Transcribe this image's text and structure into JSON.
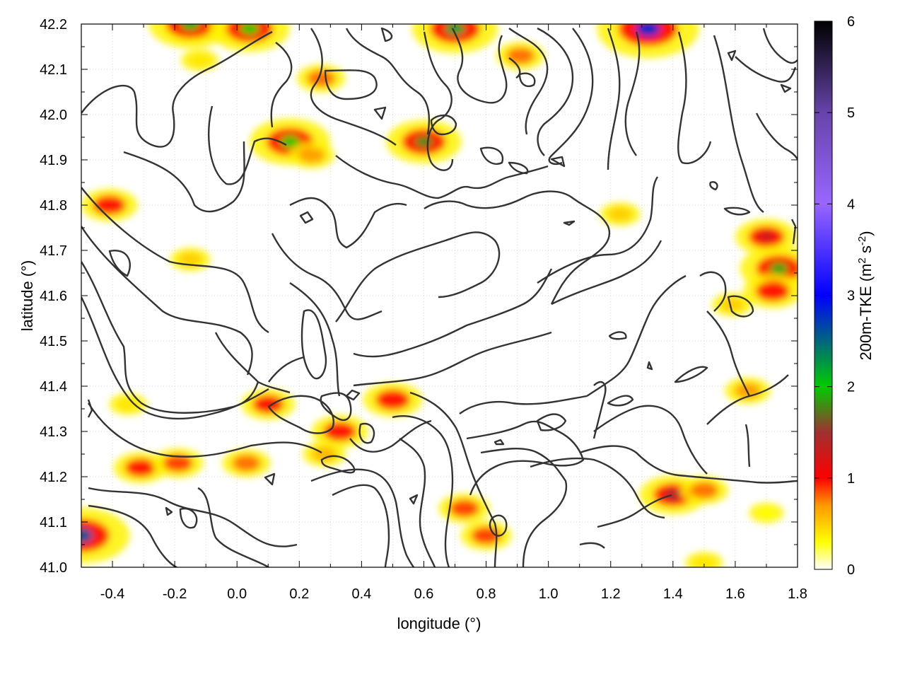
{
  "chart_data": {
    "type": "heatmap",
    "title": "",
    "xlabel": "longitude (°)",
    "ylabel": "latitude (°)",
    "xlim": [
      -0.5,
      1.8
    ],
    "ylim": [
      41.0,
      42.2
    ],
    "x_ticks": [
      -0.4,
      -0.2,
      0.0,
      0.2,
      0.4,
      0.6,
      0.8,
      1.0,
      1.2,
      1.4,
      1.6,
      1.8
    ],
    "x_tick_labels": [
      "-0.4",
      "-0.2",
      "0.0",
      "0.2",
      "0.4",
      "0.6",
      "0.8",
      "1.0",
      "1.2",
      "1.4",
      "1.6",
      "1.8"
    ],
    "y_ticks": [
      41.0,
      41.1,
      41.2,
      41.3,
      41.4,
      41.5,
      41.6,
      41.7,
      41.8,
      41.9,
      42.0,
      42.1,
      42.2
    ],
    "y_tick_labels": [
      "41.0",
      "41.1",
      "41.2",
      "41.3",
      "41.4",
      "41.5",
      "41.6",
      "41.7",
      "41.8",
      "41.9",
      "42.0",
      "42.1",
      "42.2"
    ],
    "grid": true,
    "colorbar": {
      "label_main": "200m-TKE (m",
      "label_sup1": "2",
      "label_mid": " s",
      "label_sup2": "-2",
      "label_end": ")",
      "range": [
        0,
        6
      ],
      "ticks": [
        0,
        1,
        2,
        3,
        4,
        5,
        6
      ],
      "tick_labels": [
        "0",
        "1",
        "2",
        "3",
        "4",
        "5",
        "6"
      ],
      "stops": [
        {
          "v": 0.0,
          "color": "#ffffff"
        },
        {
          "v": 0.3,
          "color": "#ffff00"
        },
        {
          "v": 0.7,
          "color": "#ff9900"
        },
        {
          "v": 1.0,
          "color": "#ff0000"
        },
        {
          "v": 1.5,
          "color": "#a03030"
        },
        {
          "v": 2.0,
          "color": "#00cc00"
        },
        {
          "v": 3.0,
          "color": "#0000ff"
        },
        {
          "v": 4.0,
          "color": "#9966ff"
        },
        {
          "v": 5.0,
          "color": "#6644aa"
        },
        {
          "v": 6.0,
          "color": "#000000"
        }
      ]
    },
    "tke_hotspots": [
      {
        "lon": -0.15,
        "lat": 42.19,
        "tke": 0.9
      },
      {
        "lon": 0.0,
        "lat": 42.19,
        "tke": 0.8
      },
      {
        "lon": -0.15,
        "lat": 42.2,
        "tke": 2.1
      },
      {
        "lon": 0.04,
        "lat": 42.19,
        "tke": 2.0
      },
      {
        "lon": -0.12,
        "lat": 42.12,
        "tke": 0.4
      },
      {
        "lon": 0.17,
        "lat": 41.94,
        "tke": 2.0
      },
      {
        "lon": 0.24,
        "lat": 41.91,
        "tke": 0.7
      },
      {
        "lon": -0.41,
        "lat": 41.8,
        "tke": 1.1
      },
      {
        "lon": -0.15,
        "lat": 41.68,
        "tke": 0.5
      },
      {
        "lon": 0.6,
        "lat": 41.94,
        "tke": 1.8
      },
      {
        "lon": 0.27,
        "lat": 42.08,
        "tke": 0.8
      },
      {
        "lon": 0.91,
        "lat": 42.13,
        "tke": 0.8
      },
      {
        "lon": 0.7,
        "lat": 42.19,
        "tke": 2.2
      },
      {
        "lon": 1.32,
        "lat": 42.19,
        "tke": 2.8
      },
      {
        "lon": 1.23,
        "lat": 41.78,
        "tke": 0.5
      },
      {
        "lon": 1.7,
        "lat": 41.73,
        "tke": 1.3
      },
      {
        "lon": 1.74,
        "lat": 41.66,
        "tke": 1.9
      },
      {
        "lon": 1.72,
        "lat": 41.61,
        "tke": 1.2
      },
      {
        "lon": 1.59,
        "lat": 41.58,
        "tke": 0.5
      },
      {
        "lon": 1.64,
        "lat": 41.39,
        "tke": 0.7
      },
      {
        "lon": 0.1,
        "lat": 41.36,
        "tke": 1.0
      },
      {
        "lon": 0.33,
        "lat": 41.3,
        "tke": 1.1
      },
      {
        "lon": 0.5,
        "lat": 41.37,
        "tke": 1.2
      },
      {
        "lon": 0.28,
        "lat": 41.25,
        "tke": 0.6
      },
      {
        "lon": -0.31,
        "lat": 41.22,
        "tke": 1.0
      },
      {
        "lon": -0.19,
        "lat": 41.23,
        "tke": 0.9
      },
      {
        "lon": 0.03,
        "lat": 41.23,
        "tke": 0.8
      },
      {
        "lon": -0.5,
        "lat": 41.07,
        "tke": 2.6
      },
      {
        "lon": 0.73,
        "lat": 41.13,
        "tke": 0.9
      },
      {
        "lon": 0.8,
        "lat": 41.07,
        "tke": 0.9
      },
      {
        "lon": 1.4,
        "lat": 41.16,
        "tke": 1.5
      },
      {
        "lon": 1.5,
        "lat": 41.17,
        "tke": 0.8
      },
      {
        "lon": -0.35,
        "lat": 41.36,
        "tke": 0.4
      },
      {
        "lon": 1.5,
        "lat": 41.01,
        "tke": 0.4
      },
      {
        "lon": 1.7,
        "lat": 41.12,
        "tke": 0.3
      }
    ]
  }
}
